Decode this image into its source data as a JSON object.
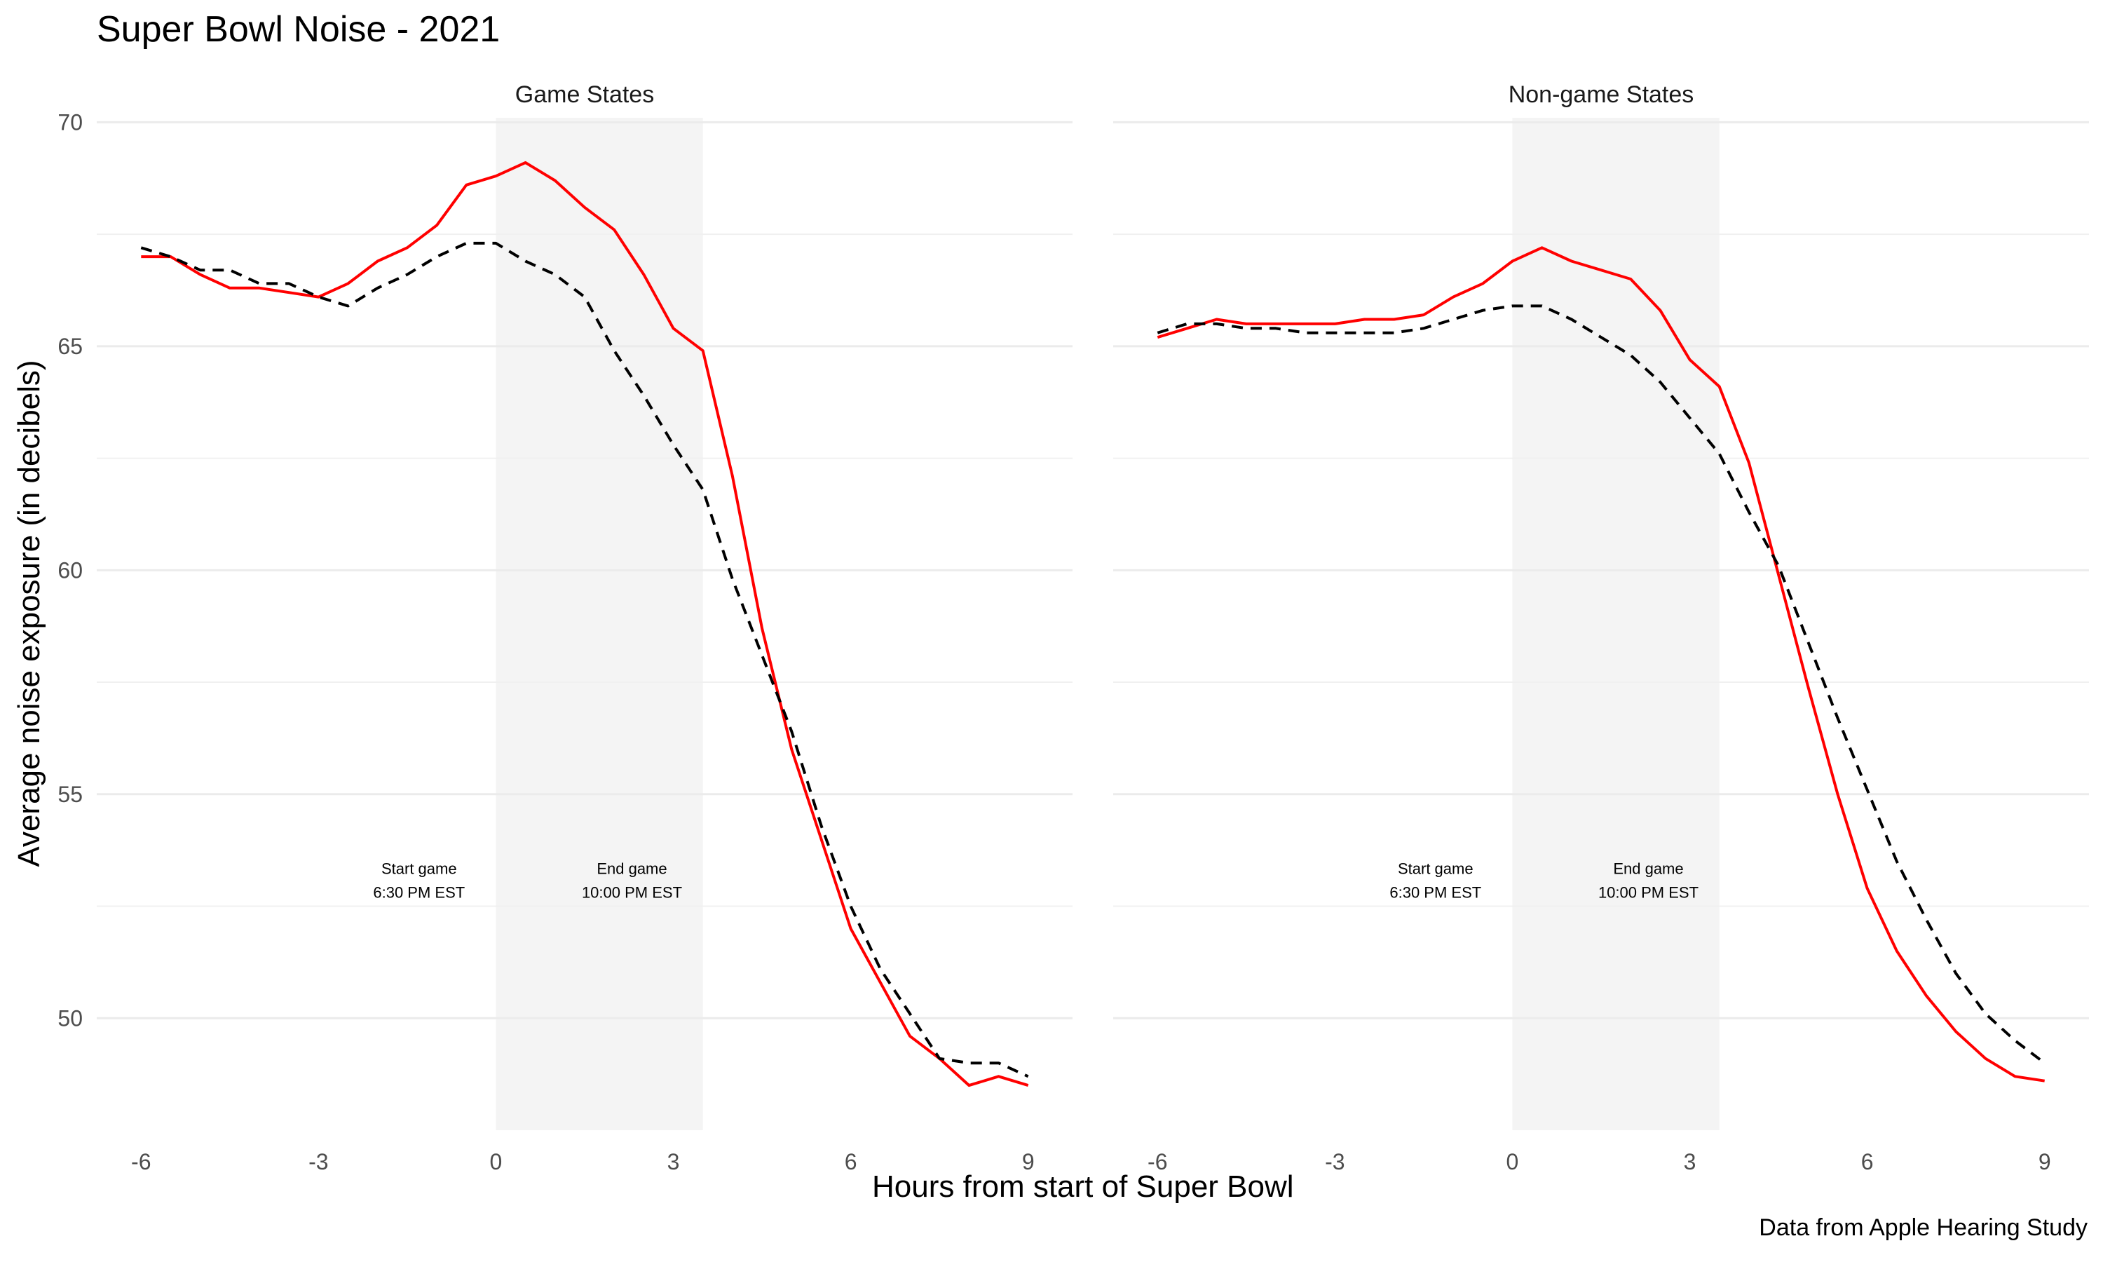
{
  "chart_data": {
    "type": "line",
    "title": "Super Bowl Noise - 2021",
    "xlabel": "Hours from start of Super Bowl",
    "ylabel": "Average noise exposure (in decibels)",
    "caption": "Data from Apple Hearing Study",
    "xlim": [
      -6.75,
      9.75
    ],
    "ylim": [
      47.5,
      70.1
    ],
    "x_ticks": [
      -6,
      -3,
      0,
      3,
      6,
      9
    ],
    "y_ticks": [
      50,
      55,
      60,
      65,
      70
    ],
    "grid": true,
    "shaded_region": [
      0,
      3.5
    ],
    "annotations": [
      {
        "x": -1.3,
        "y": 53.0,
        "lines": [
          "Start game",
          "6:30 PM EST"
        ]
      },
      {
        "x": 2.3,
        "y": 53.0,
        "lines": [
          "End game",
          "10:00 PM EST"
        ]
      }
    ],
    "colors": {
      "red": "#ff0000",
      "dashed": "#000000",
      "shade": "#f4f4f4",
      "grid": "#ebebeb"
    },
    "panels": [
      {
        "name": "Game States",
        "series": [
          {
            "style": "red-solid",
            "x": [
              -6,
              -5.5,
              -5,
              -4.5,
              -4,
              -3.5,
              -3,
              -2.5,
              -2,
              -1.5,
              -1,
              -0.5,
              0,
              0.5,
              1,
              1.5,
              2,
              2.5,
              3,
              3.5,
              4,
              4.5,
              5,
              5.5,
              6,
              6.5,
              7,
              7.5,
              8,
              8.5,
              9
            ],
            "values": [
              67.0,
              67.0,
              66.6,
              66.3,
              66.3,
              66.2,
              66.1,
              66.4,
              66.9,
              67.2,
              67.7,
              68.6,
              68.8,
              69.1,
              68.7,
              68.1,
              67.6,
              66.6,
              65.4,
              64.9,
              62.1,
              58.7,
              56.0,
              54.0,
              52.0,
              50.8,
              49.6,
              49.1,
              48.5,
              48.7,
              48.5
            ]
          },
          {
            "style": "black-dashed",
            "x": [
              -6,
              -5.5,
              -5,
              -4.5,
              -4,
              -3.5,
              -3,
              -2.5,
              -2,
              -1.5,
              -1,
              -0.5,
              0,
              0.5,
              1,
              1.5,
              2,
              2.5,
              3,
              3.5,
              4,
              4.5,
              5,
              5.5,
              6,
              6.5,
              7,
              7.5,
              8,
              8.5,
              9
            ],
            "values": [
              67.2,
              67.0,
              66.7,
              66.7,
              66.4,
              66.4,
              66.1,
              65.9,
              66.3,
              66.6,
              67.0,
              67.3,
              67.3,
              66.9,
              66.6,
              66.1,
              64.9,
              63.9,
              62.8,
              61.8,
              59.8,
              58.1,
              56.4,
              54.3,
              52.5,
              51.1,
              50.1,
              49.1,
              49.0,
              49.0,
              48.7
            ]
          }
        ]
      },
      {
        "name": "Non-game States",
        "series": [
          {
            "style": "red-solid",
            "x": [
              -6,
              -5.5,
              -5,
              -4.5,
              -4,
              -3.5,
              -3,
              -2.5,
              -2,
              -1.5,
              -1,
              -0.5,
              0,
              0.5,
              1,
              1.5,
              2,
              2.5,
              3,
              3.5,
              4,
              4.5,
              5,
              5.5,
              6,
              6.5,
              7,
              7.5,
              8,
              8.5,
              9
            ],
            "values": [
              65.2,
              65.4,
              65.6,
              65.5,
              65.5,
              65.5,
              65.5,
              65.6,
              65.6,
              65.7,
              66.1,
              66.4,
              66.9,
              67.2,
              66.9,
              66.7,
              66.5,
              65.8,
              64.7,
              64.1,
              62.4,
              59.9,
              57.4,
              55.0,
              52.9,
              51.5,
              50.5,
              49.7,
              49.1,
              48.7,
              48.6
            ]
          },
          {
            "style": "black-dashed",
            "x": [
              -6,
              -5.5,
              -5,
              -4.5,
              -4,
              -3.5,
              -3,
              -2.5,
              -2,
              -1.5,
              -1,
              -0.5,
              0,
              0.5,
              1,
              1.5,
              2,
              2.5,
              3,
              3.5,
              4,
              4.5,
              5,
              5.5,
              6,
              6.5,
              7,
              7.5,
              8,
              8.5,
              9
            ],
            "values": [
              65.3,
              65.5,
              65.5,
              65.4,
              65.4,
              65.3,
              65.3,
              65.3,
              65.3,
              65.4,
              65.6,
              65.8,
              65.9,
              65.9,
              65.6,
              65.2,
              64.8,
              64.2,
              63.4,
              62.6,
              61.3,
              60.1,
              58.4,
              56.7,
              55.1,
              53.5,
              52.2,
              51.0,
              50.1,
              49.5,
              49.0
            ]
          }
        ]
      }
    ]
  }
}
